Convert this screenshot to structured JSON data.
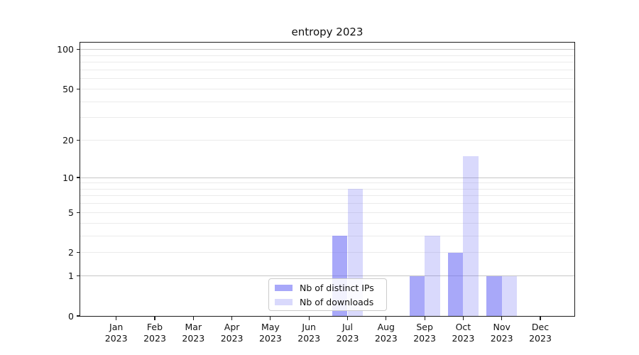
{
  "chart_data": {
    "type": "bar",
    "title": "entropy 2023",
    "categories": [
      "Jan",
      "Feb",
      "Mar",
      "Apr",
      "May",
      "Jun",
      "Jul",
      "Aug",
      "Sep",
      "Oct",
      "Nov",
      "Dec"
    ],
    "category_sublabel": "2023",
    "series": [
      {
        "name": "Nb of distinct IPs",
        "color": "rgba(105,105,245,0.58)",
        "values": [
          0,
          0,
          0,
          0,
          0,
          0,
          3,
          0,
          1,
          2,
          1,
          0
        ]
      },
      {
        "name": "Nb of downloads",
        "color": "rgba(105,105,245,0.25)",
        "values": [
          0,
          0,
          0,
          0,
          0,
          0,
          8,
          0,
          3,
          15,
          1,
          0
        ]
      }
    ],
    "xlabel": "",
    "ylabel": "",
    "yscale": "log1p",
    "ylim": [
      0,
      113
    ],
    "yticks": [
      0,
      1,
      2,
      5,
      10,
      20,
      50,
      100
    ],
    "major_gridlines": [
      1,
      10,
      100
    ],
    "minor_gridlines": [
      2,
      3,
      4,
      5,
      6,
      7,
      8,
      9,
      20,
      30,
      40,
      50,
      60,
      70,
      80,
      90
    ],
    "grid": true,
    "legend": {
      "position": "lower-center",
      "entries": [
        "Nb of distinct IPs",
        "Nb of downloads"
      ]
    }
  },
  "colors": {
    "bar_distinct_ips_flat": "#a8a8fa",
    "bar_downloads_flat": "#d9d9fa",
    "series_base": "#6969f5",
    "major_grid": "#c6c6c6",
    "minor_grid": "#ebebeb",
    "axis": "#1c1c1c",
    "legend_border": "#cbcbcb",
    "background": "#ffffff"
  }
}
